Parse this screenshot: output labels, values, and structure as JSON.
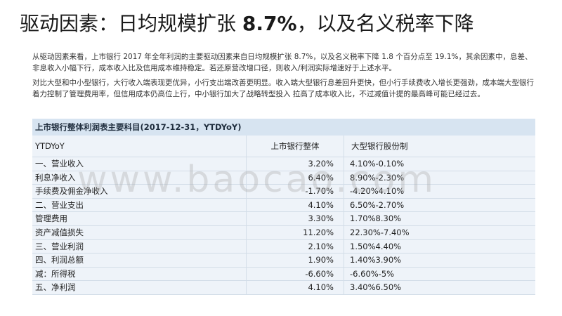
{
  "title": {
    "prefix": "驱动因素：日均规模扩张 ",
    "highlight": "8.7%",
    "suffix": "，以及名义税率下降"
  },
  "paragraphs": [
    "从驱动因素来看，上市银行 2017 年全年利润的主要驱动因素来自日均规模扩张 8.7%，以及名义税率下降 1.8 个百分点至 19.1%，其余因素中，息差、非息收入小幅下行，成本收入比及信用成本维持稳定。若还原营改增口径，则收入/利润实际增速好于上述水平。",
    "对比大型和中小型银行，大行收入端表现更优异，小行支出端改善更明显。收入端大型银行息差回升更快，但小行手续费收入增长更强劲，成本端大型银行着力控制了管理费用率，但信用成本仍高位上行，中小银行加大了战略转型投入 拉高了成本收入比，不过减值计提的最高峰可能已经过去。"
  ],
  "table": {
    "caption": "上市银行整体利润表主要科目(2017-12-31，YTDYoY)",
    "headers": [
      "YTDYoY",
      "上市银行整体",
      "大型银行股份制"
    ],
    "rows": [
      [
        "一、营业收入",
        "3.20%",
        "4.10%-0.10%"
      ],
      [
        "利息净收入",
        "6.40%",
        "8.90%-2.30%"
      ],
      [
        "手续费及佣金净收入",
        "-1.70%",
        "-4.20%4.10%"
      ],
      [
        "二、营业支出",
        "4.10%",
        "6.50%-2.70%"
      ],
      [
        "管理费用",
        "3.30%",
        "1.70%8.30%"
      ],
      [
        "资产减值损失",
        "11.20%",
        "22.30%-7.40%"
      ],
      [
        "三、营业利润",
        "2.10%",
        "1.50%4.40%"
      ],
      [
        "四、利润总额",
        "1.90%",
        "1.40%3.90%"
      ],
      [
        "减：所得税",
        "-6.60%",
        "-6.60%-5%"
      ],
      [
        "五、净利润",
        "4.10%",
        "3.40%6.50%"
      ]
    ]
  },
  "watermark": "www.baocao.com"
}
